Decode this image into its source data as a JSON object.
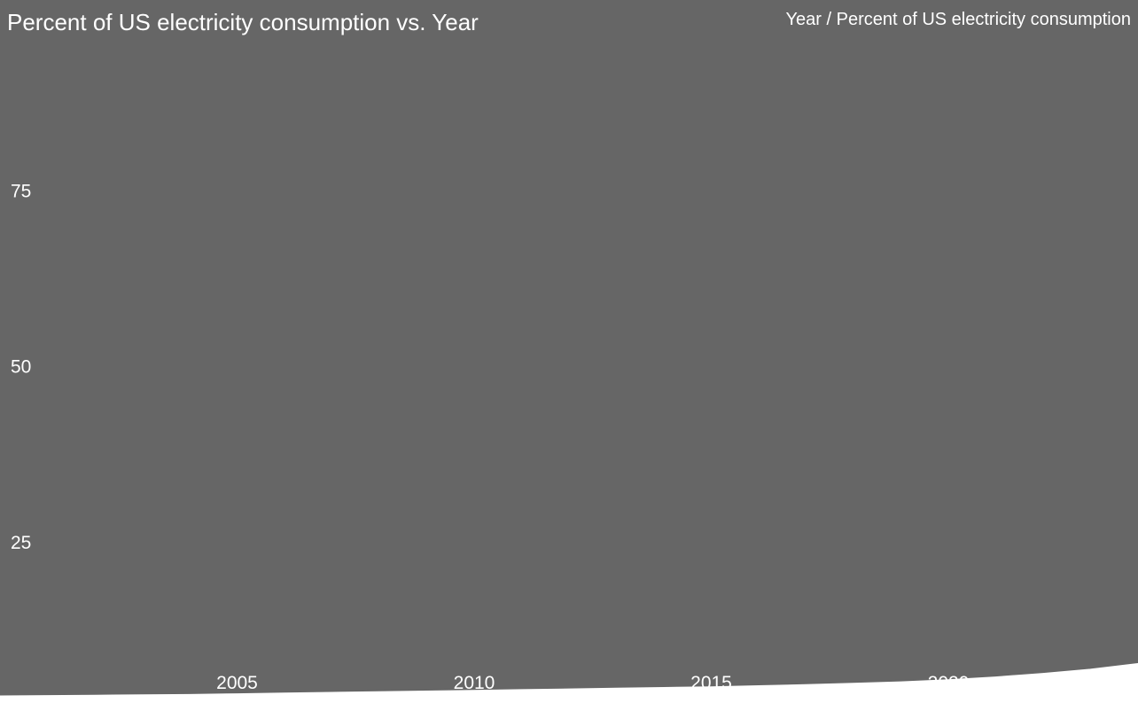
{
  "header": {
    "title": "Percent of US electricity consumption vs. Year",
    "hover_label": "Year / Percent of US electricity consumption"
  },
  "colors": {
    "background": "#666666",
    "text": "#ffffff",
    "line": "#ffffff",
    "area_fill": "#ffffff"
  },
  "chart_data": {
    "type": "area",
    "title": "Percent of US electricity consumption vs. Year",
    "xlabel": "Year",
    "ylabel": "Percent of US electricity consumption",
    "x": [
      2000,
      2001,
      2002,
      2003,
      2004,
      2005,
      2006,
      2007,
      2008,
      2009,
      2010,
      2011,
      2012,
      2013,
      2014,
      2015,
      2016,
      2017,
      2018,
      2019,
      2020,
      2021,
      2022,
      2023,
      2024
    ],
    "values": [
      2.9,
      2.95,
      3.0,
      3.05,
      3.1,
      3.2,
      3.3,
      3.4,
      3.5,
      3.6,
      3.7,
      3.8,
      3.9,
      4.0,
      4.1,
      4.2,
      4.35,
      4.5,
      4.7,
      4.9,
      5.2,
      5.6,
      6.1,
      6.7,
      7.5
    ],
    "xlim": [
      2000,
      2024
    ],
    "ylim": [
      0,
      100
    ],
    "xticks": [
      2005,
      2010,
      2015,
      2020
    ],
    "yticks": [
      25,
      50,
      75
    ],
    "grid": false,
    "legend": "none"
  }
}
